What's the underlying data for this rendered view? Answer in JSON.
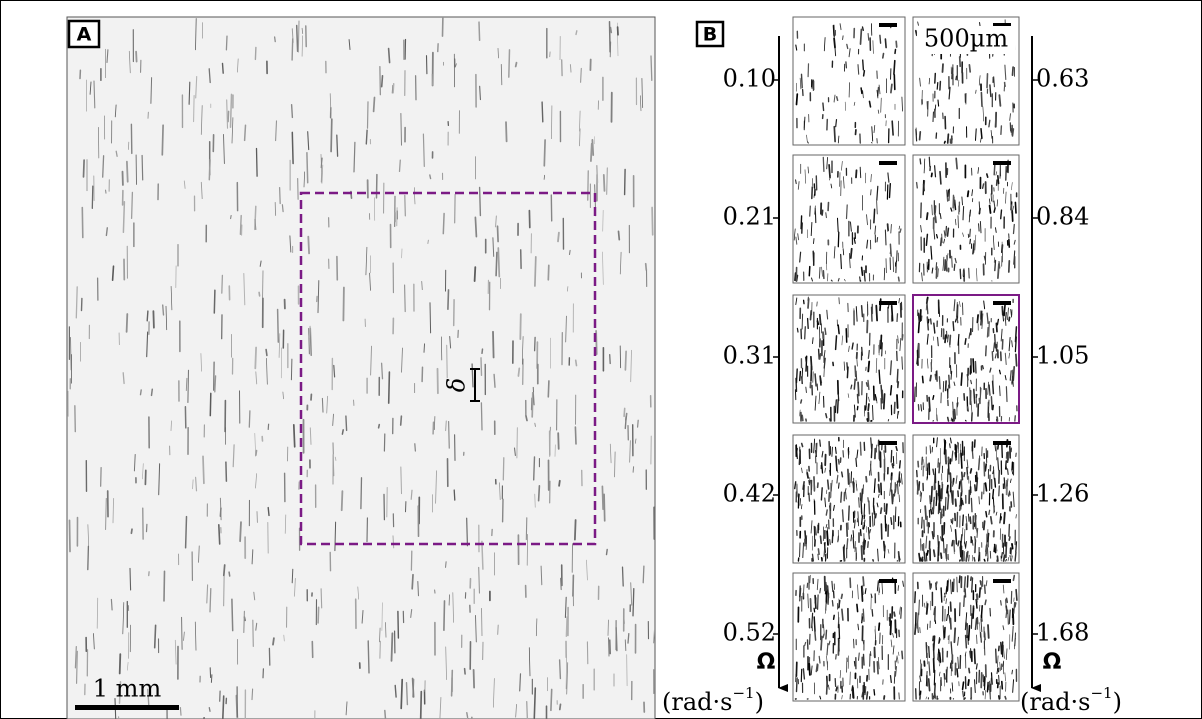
{
  "panel_a": {
    "label": "A",
    "scale_bar": "1 mm",
    "symbol": "δ"
  },
  "panel_b": {
    "label": "B",
    "scale_bar": "500µm",
    "left_axis": {
      "ticks": [
        "0.10",
        "0.21",
        "0.31",
        "0.42",
        "0.52"
      ],
      "symbol": "Ω",
      "unit_prefix": "(rad·s",
      "unit_exponent": "−1",
      "unit_suffix": ")"
    },
    "right_axis": {
      "ticks": [
        "0.63",
        "0.84",
        "1.05",
        "1.26",
        "1.68"
      ],
      "symbol": "Ω",
      "unit_prefix": "(rad·s",
      "unit_exponent": "−1",
      "unit_suffix": ")"
    }
  }
}
